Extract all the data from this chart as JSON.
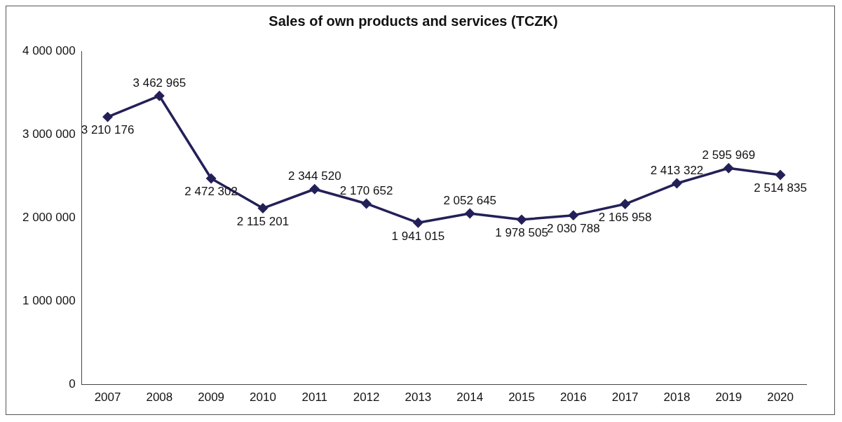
{
  "chart_data": {
    "type": "line",
    "title": "Sales of own products and services (TCZK)",
    "categories": [
      "2007",
      "2008",
      "2009",
      "2010",
      "2011",
      "2012",
      "2013",
      "2014",
      "2015",
      "2016",
      "2017",
      "2018",
      "2019",
      "2020"
    ],
    "series": [
      {
        "color": "#232058",
        "values": [
          3210176,
          3462965,
          2472302,
          2115201,
          2344520,
          2170652,
          1941015,
          2052645,
          1978505,
          2030788,
          2165958,
          2413322,
          2595969,
          2514835
        ],
        "value_labels": [
          "3 210 176",
          "3 462 965",
          "2 472 302",
          "2 115 201",
          "2 344 520",
          "2 170 652",
          "1 941 015",
          "2 052 645",
          "1 978 505",
          "2 030 788",
          "2 165 958",
          "2 413 322",
          "2 595 969",
          "2 514 835"
        ]
      }
    ],
    "ylim": [
      0,
      4000000
    ],
    "yticks": [
      {
        "value": 0,
        "label": "0"
      },
      {
        "value": 1000000,
        "label": "1 000 000"
      },
      {
        "value": 2000000,
        "label": "2 000 000"
      },
      {
        "value": 3000000,
        "label": "3 000 000"
      },
      {
        "value": 4000000,
        "label": "4 000 000"
      }
    ],
    "grid": false,
    "legend": false,
    "marker": "diamond",
    "line_style": "solid"
  }
}
